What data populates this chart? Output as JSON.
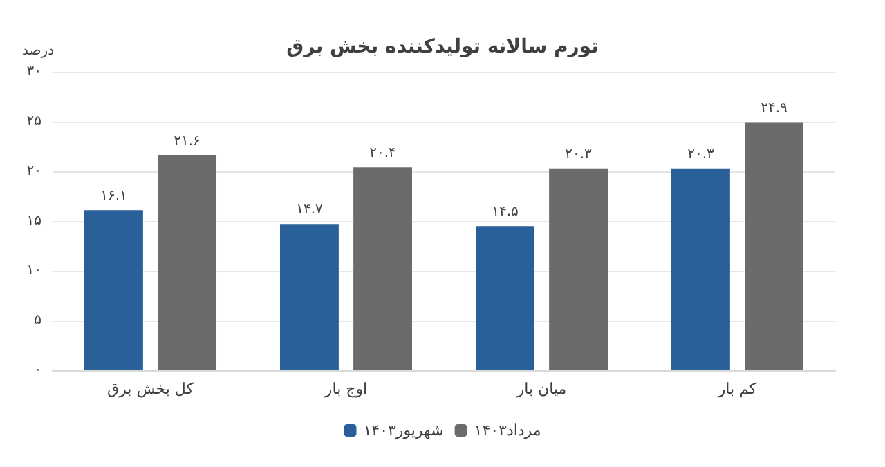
{
  "chart_data": {
    "type": "bar",
    "title": "تورم سالانه تولیدکننده بخش برق",
    "ylabel": "درصد",
    "categories": [
      "کل بخش برق",
      "اوج بار",
      "میان بار",
      "کم بار"
    ],
    "series": [
      {
        "name": "شهریور۱۴۰۳",
        "color": "#2a6099",
        "values": [
          16.1,
          14.7,
          14.5,
          20.3
        ],
        "value_labels": [
          "۱۶.۱",
          "۱۴.۷",
          "۱۴.۵",
          "۲۰.۳"
        ]
      },
      {
        "name": "مرداد۱۴۰۳",
        "color": "#6b6b6b",
        "values": [
          21.6,
          20.4,
          20.3,
          24.9
        ],
        "value_labels": [
          "۲۱.۶",
          "۲۰.۴",
          "۲۰.۳",
          "۲۴.۹"
        ]
      }
    ],
    "ylim": [
      0,
      30
    ],
    "yticks": [
      {
        "value": 0,
        "label": "۰"
      },
      {
        "value": 5,
        "label": "۵"
      },
      {
        "value": 10,
        "label": "۱۰"
      },
      {
        "value": 15,
        "label": "۱۵"
      },
      {
        "value": 20,
        "label": "۲۰"
      },
      {
        "value": 25,
        "label": "۲۵"
      },
      {
        "value": 30,
        "label": "۳۰"
      }
    ],
    "grid": "y",
    "legend": "bottom"
  }
}
